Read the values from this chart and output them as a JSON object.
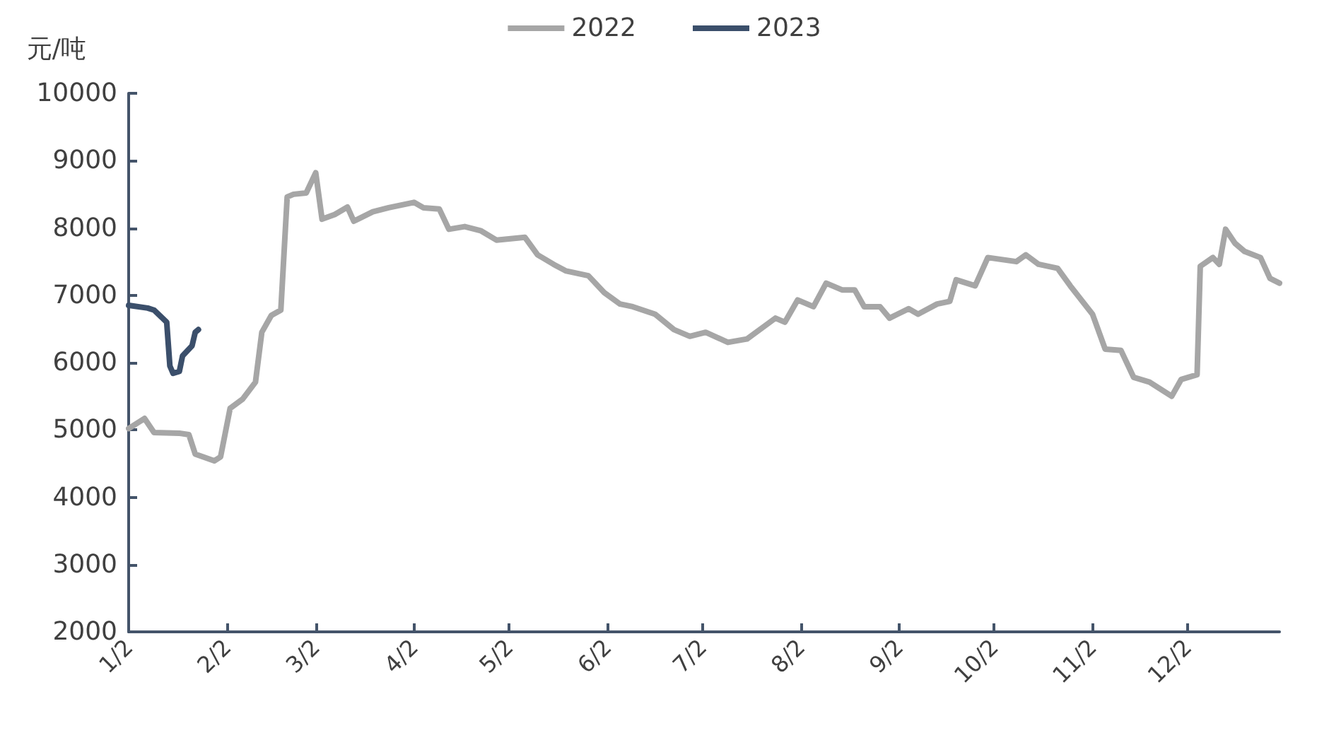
{
  "chart_data": {
    "type": "line",
    "ylabel": "元/吨",
    "legend": "top",
    "grid": false,
    "marker": "none",
    "line_style": "solid",
    "xlim": [
      "--01-02",
      "--12-31"
    ],
    "xticks": [
      {
        "value": "--01-02",
        "label": "1/2"
      },
      {
        "value": "--02-02",
        "label": "2/2"
      },
      {
        "value": "--03-02",
        "label": "3/2"
      },
      {
        "value": "--04-02",
        "label": "4/2"
      },
      {
        "value": "--05-02",
        "label": "5/2"
      },
      {
        "value": "--06-02",
        "label": "6/2"
      },
      {
        "value": "--07-02",
        "label": "7/2"
      },
      {
        "value": "--08-02",
        "label": "8/2"
      },
      {
        "value": "--09-02",
        "label": "9/2"
      },
      {
        "value": "--10-02",
        "label": "10/2"
      },
      {
        "value": "--11-02",
        "label": "11/2"
      },
      {
        "value": "--12-02",
        "label": "12/2"
      }
    ],
    "ylim": [
      2000,
      10000
    ],
    "yticks": [
      2000,
      3000,
      4000,
      5000,
      6000,
      7000,
      8000,
      9000,
      10000
    ],
    "series": [
      {
        "name": "2022",
        "color": "#a6a6a6",
        "x": [
          "--01-02",
          "--01-07",
          "--01-10",
          "--01-18",
          "--01-21",
          "--01-23",
          "--01-29",
          "--01-31",
          "--02-03",
          "--02-07",
          "--02-11",
          "--02-13",
          "--02-16",
          "--02-19",
          "--02-21",
          "--02-23",
          "--02-27",
          "--03-02",
          "--03-04",
          "--03-08",
          "--03-12",
          "--03-14",
          "--03-20",
          "--03-25",
          "--04-02",
          "--04-05",
          "--04-10",
          "--04-13",
          "--04-18",
          "--04-23",
          "--04-28",
          "--05-07",
          "--05-11",
          "--05-16",
          "--05-20",
          "--05-27",
          "--06-01",
          "--06-06",
          "--06-10",
          "--06-17",
          "--06-23",
          "--06-28",
          "--07-03",
          "--07-10",
          "--07-16",
          "--07-25",
          "--07-28",
          "--08-01",
          "--08-06",
          "--08-10",
          "--08-15",
          "--08-19",
          "--08-22",
          "--08-27",
          "--08-30",
          "--09-05",
          "--09-08",
          "--09-14",
          "--09-18",
          "--09-20",
          "--09-26",
          "--09-30",
          "--10-09",
          "--10-12",
          "--10-16",
          "--10-22",
          "--10-26",
          "--11-02",
          "--11-06",
          "--11-11",
          "--11-15",
          "--11-20",
          "--11-27",
          "--11-30",
          "--12-05",
          "--12-06",
          "--12-10",
          "--12-12",
          "--12-14",
          "--12-17",
          "--12-20",
          "--12-25",
          "--12-28",
          "--12-31"
        ],
        "values": [
          5020,
          5170,
          4960,
          4950,
          4930,
          4640,
          4540,
          4600,
          5320,
          5460,
          5710,
          6450,
          6700,
          6780,
          8460,
          8500,
          8520,
          8820,
          8130,
          8200,
          8310,
          8100,
          8240,
          8300,
          8380,
          8300,
          8280,
          7980,
          8020,
          7960,
          7820,
          7860,
          7600,
          7460,
          7360,
          7290,
          7040,
          6870,
          6830,
          6720,
          6490,
          6390,
          6450,
          6300,
          6350,
          6660,
          6600,
          6930,
          6830,
          7180,
          7080,
          7080,
          6830,
          6830,
          6660,
          6800,
          6720,
          6870,
          6910,
          7230,
          7140,
          7560,
          7500,
          7600,
          7460,
          7400,
          7140,
          6720,
          6200,
          6180,
          5780,
          5710,
          5500,
          5750,
          5820,
          7430,
          7560,
          7460,
          7980,
          7770,
          7650,
          7560,
          7250,
          7180
        ]
      },
      {
        "name": "2023",
        "color": "#3b4f6b",
        "x": [
          "--01-02",
          "--01-08",
          "--01-10",
          "--01-14",
          "--01-15",
          "--01-16",
          "--01-18",
          "--01-19",
          "--01-21",
          "--01-22",
          "--01-23",
          "--01-24"
        ],
        "values": [
          6850,
          6810,
          6780,
          6600,
          5950,
          5840,
          5870,
          6100,
          6200,
          6250,
          6450,
          6490
        ]
      }
    ]
  }
}
